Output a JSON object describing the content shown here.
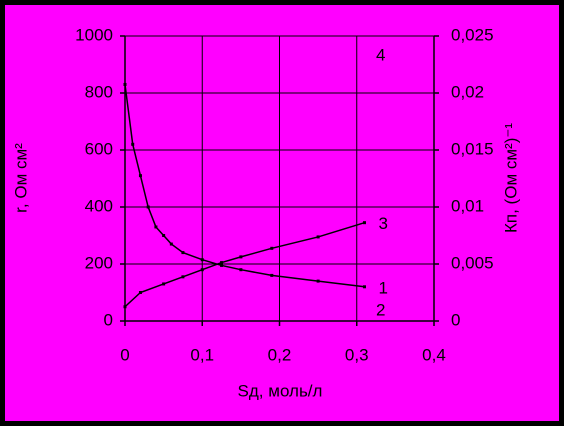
{
  "chart_data": {
    "type": "line",
    "x_label": "Sд, моль/л",
    "y_label": "r, Ом см²",
    "y2_label": "Кп, (Ом см²)⁻¹",
    "xlim": [
      0,
      0.4
    ],
    "xticks": [
      0,
      {
        "value": 0.1,
        "label": "0,1"
      },
      {
        "value": 0.2,
        "label": "0,2"
      },
      {
        "value": 0.3,
        "label": "0,3"
      },
      {
        "value": 0.4,
        "label": "0,4"
      }
    ],
    "ylim": [
      0,
      1000
    ],
    "yticks": [
      0,
      200,
      400,
      600,
      800,
      1000
    ],
    "y2lim": [
      0,
      0.025
    ],
    "y2ticks": [
      0,
      {
        "value": 0.005,
        "label": "0,005"
      },
      {
        "value": 0.01,
        "label": "0,01"
      },
      {
        "value": 0.015,
        "label": "0,015"
      },
      {
        "value": 0.02,
        "label": "0,02"
      },
      {
        "value": 0.025,
        "label": "0,025"
      }
    ],
    "grid": true,
    "background": "#ff00ff",
    "series": [
      {
        "name": "1",
        "color": "#000000",
        "x": [
          0,
          0.01,
          0.02,
          0.03,
          0.04,
          0.05,
          0.06,
          0.075,
          0.1,
          0.125,
          0.15,
          0.19,
          0.25,
          0.31
        ],
        "values": [
          830,
          620,
          510,
          400,
          330,
          300,
          270,
          240,
          215,
          195,
          180,
          160,
          140,
          120
        ]
      },
      {
        "name": "3",
        "color": "#000000",
        "x": [
          0,
          0.02,
          0.05,
          0.075,
          0.1,
          0.125,
          0.15,
          0.19,
          0.25,
          0.31
        ],
        "values": [
          50,
          100,
          130,
          155,
          180,
          205,
          225,
          255,
          295,
          345
        ]
      }
    ],
    "annotations": [
      "2",
      "4"
    ]
  }
}
